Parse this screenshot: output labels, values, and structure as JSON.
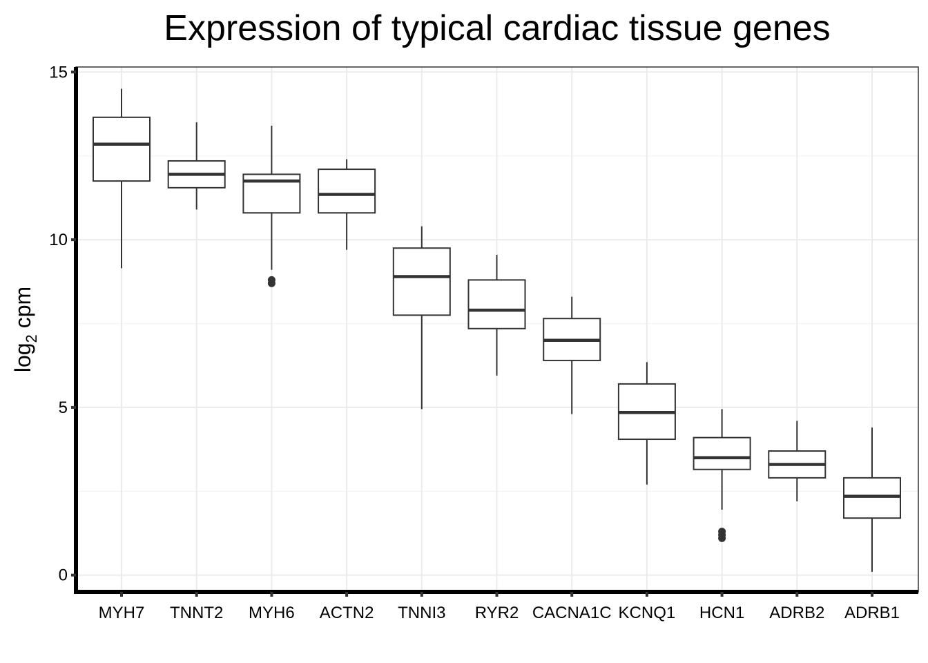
{
  "chart_data": {
    "type": "box",
    "title": "Expression of typical cardiac tissue genes",
    "ylabel": "log",
    "ylabel_subscript": "2",
    "ylabel_suffix": " cpm",
    "xlabel": "",
    "ylim": [
      -0.5,
      15.15
    ],
    "yticks": [
      0,
      5,
      10,
      15
    ],
    "grid": true,
    "categories": [
      "MYH7",
      "TNNT2",
      "MYH6",
      "ACTN2",
      "TNNI3",
      "RYR2",
      "CACNA1C",
      "KCNQ1",
      "HCN1",
      "ADRB2",
      "ADRB1"
    ],
    "boxes": [
      {
        "whisker_low": 9.15,
        "q1": 11.75,
        "median": 12.85,
        "q3": 13.65,
        "whisker_high": 14.5,
        "outliers": []
      },
      {
        "whisker_low": 10.9,
        "q1": 11.55,
        "median": 11.95,
        "q3": 12.35,
        "whisker_high": 13.5,
        "outliers": []
      },
      {
        "whisker_low": 9.1,
        "q1": 10.8,
        "median": 11.75,
        "q3": 11.95,
        "whisker_high": 13.4,
        "outliers": [
          8.7,
          8.8
        ]
      },
      {
        "whisker_low": 9.7,
        "q1": 10.8,
        "median": 11.35,
        "q3": 12.1,
        "whisker_high": 12.4,
        "outliers": []
      },
      {
        "whisker_low": 4.95,
        "q1": 7.75,
        "median": 8.9,
        "q3": 9.75,
        "whisker_high": 10.4,
        "outliers": []
      },
      {
        "whisker_low": 5.95,
        "q1": 7.35,
        "median": 7.9,
        "q3": 8.8,
        "whisker_high": 9.55,
        "outliers": []
      },
      {
        "whisker_low": 4.8,
        "q1": 6.4,
        "median": 7.0,
        "q3": 7.65,
        "whisker_high": 8.3,
        "outliers": []
      },
      {
        "whisker_low": 2.7,
        "q1": 4.05,
        "median": 4.85,
        "q3": 5.7,
        "whisker_high": 6.35,
        "outliers": []
      },
      {
        "whisker_low": 1.95,
        "q1": 3.15,
        "median": 3.5,
        "q3": 4.1,
        "whisker_high": 4.95,
        "outliers": [
          1.1,
          1.2,
          1.3
        ]
      },
      {
        "whisker_low": 2.2,
        "q1": 2.9,
        "median": 3.3,
        "q3": 3.7,
        "whisker_high": 4.6,
        "outliers": []
      },
      {
        "whisker_low": 0.1,
        "q1": 1.7,
        "median": 2.35,
        "q3": 2.9,
        "whisker_high": 4.4,
        "outliers": []
      }
    ]
  }
}
